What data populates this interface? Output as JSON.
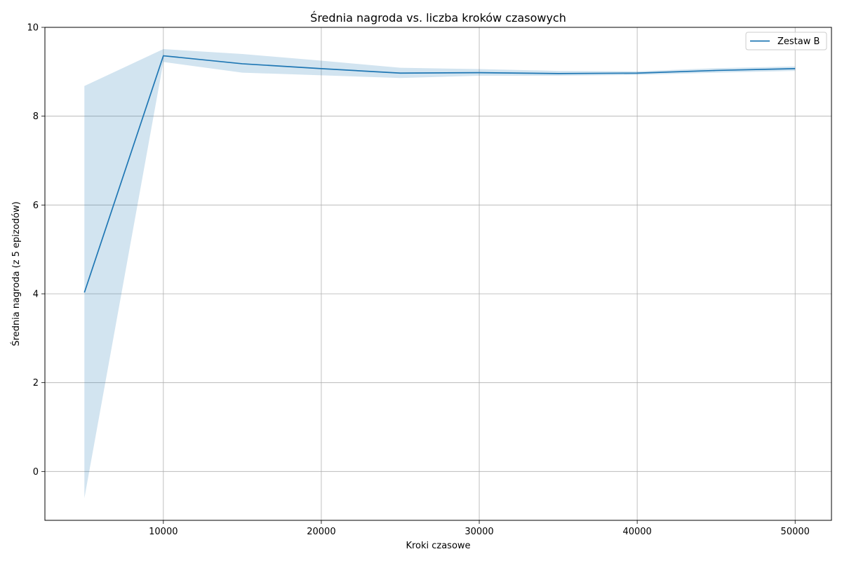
{
  "chart_data": {
    "type": "line",
    "title": "Średnia nagroda vs. liczba kroków czasowych",
    "xlabel": "Kroki czasowe",
    "ylabel": "Średnia nagroda (z 5 epizodów)",
    "xlim": [
      2500,
      52300
    ],
    "ylim": [
      -1.1,
      10
    ],
    "xticks": [
      10000,
      20000,
      30000,
      40000,
      50000
    ],
    "yticks": [
      0,
      2,
      4,
      6,
      8,
      10
    ],
    "grid": true,
    "legend_position": "top-right",
    "series": [
      {
        "name": "Zestaw B",
        "color": "#1f77b4",
        "x": [
          5000,
          10000,
          15000,
          20000,
          25000,
          30000,
          35000,
          40000,
          45000,
          50000
        ],
        "y": [
          4.03,
          9.36,
          9.18,
          9.07,
          8.97,
          8.98,
          8.96,
          8.97,
          9.03,
          9.07
        ],
        "band_lower": [
          -0.6,
          9.22,
          8.98,
          8.92,
          8.86,
          8.91,
          8.91,
          8.93,
          8.98,
          9.02
        ],
        "band_upper": [
          8.68,
          9.51,
          9.4,
          9.25,
          9.09,
          9.06,
          9.02,
          9.01,
          9.08,
          9.12
        ]
      }
    ]
  }
}
